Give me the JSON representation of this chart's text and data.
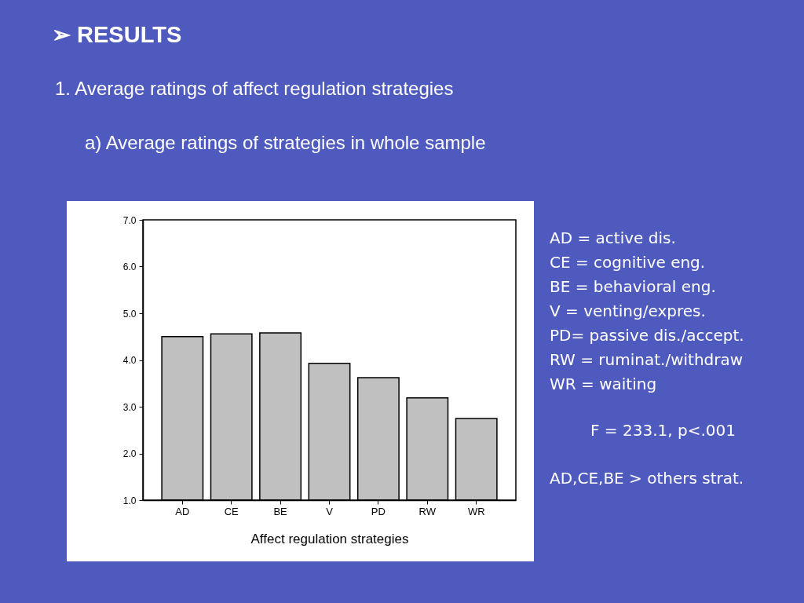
{
  "chart_data": {
    "type": "bar",
    "title": "➢ RESULTS",
    "subtitle": "1. Average ratings of affect regulation strategies",
    "xlabel": "Affect regulation strategies",
    "categories": [
      "AD",
      "CE",
      "BE",
      "V",
      "PD",
      "RW",
      "WR"
    ],
    "values": [
      4.5,
      4.56,
      4.58,
      3.93,
      3.62,
      3.19,
      2.75
    ],
    "color": "#c0c0c0",
    "ylim": [
      1,
      7
    ],
    "yticks": [
      {
        "value": 1,
        "label": "1.0"
      },
      {
        "value": 2,
        "label": "2.0"
      },
      {
        "value": 3,
        "label": "3.0"
      },
      {
        "value": 4,
        "label": "4.0"
      },
      {
        "value": 5,
        "label": "5.0"
      },
      {
        "value": 6,
        "label": "6.0"
      },
      {
        "value": 7,
        "label": "7.0"
      }
    ],
    "grid": false,
    "annotations": [
      "a) Average ratings of strategies in whole sample",
      "AD = active dis.",
      "CE = cognitive eng.",
      "BE = behavioral eng.",
      "V = venting/expres.",
      "PD= passive dis./accept.",
      "RW = ruminat./withdraw",
      "WR = waiting",
      "F = 233.1, p<.001",
      "AD,CE,BE > others strat."
    ]
  }
}
